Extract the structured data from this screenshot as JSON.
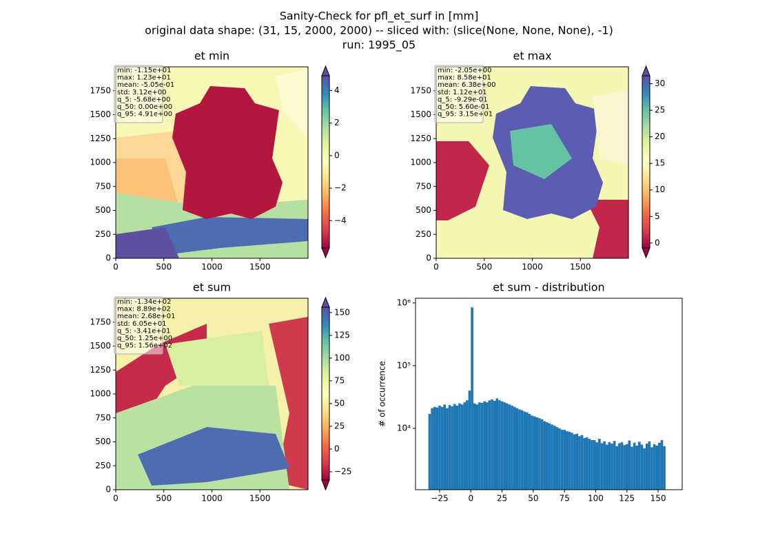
{
  "suptitle": [
    "Sanity-Check for pfl_et_surf in [mm]",
    "original data shape: (31, 15, 2000, 2000) -- sliced with: (slice(None, None, None), -1)",
    "run: 1995_05"
  ],
  "chart_data": [
    {
      "type": "heatmap",
      "title": "et min",
      "xlim": [
        0,
        2000
      ],
      "ylim": [
        0,
        2000
      ],
      "xticks": [
        0,
        500,
        1000,
        1500
      ],
      "yticks": [
        0,
        250,
        500,
        750,
        1000,
        1250,
        1500,
        1750
      ],
      "colormap": "Spectral",
      "colorbar_lim": [
        -5.68,
        4.91
      ],
      "colorbar_ticks": [
        {
          "value": -4,
          "label": "−4"
        },
        {
          "value": -2,
          "label": "−2"
        },
        0,
        2,
        4
      ],
      "stats": [
        "min: -1.15e+01",
        "max: 1.23e+01",
        "mean: -5.05e-01",
        "std: 3.12e+00",
        "q_5: -5.68e+00",
        "q_50: 0.00e+00",
        "q_95: 4.91e+00"
      ]
    },
    {
      "type": "heatmap",
      "title": "et max",
      "xlim": [
        0,
        2000
      ],
      "ylim": [
        0,
        2000
      ],
      "xticks": [
        0,
        500,
        1000,
        1500
      ],
      "yticks": [
        0,
        250,
        500,
        750,
        1000,
        1250,
        1500,
        1750
      ],
      "colormap": "Spectral",
      "colorbar_lim": [
        -0.929,
        31.5
      ],
      "colorbar_ticks": [
        0,
        5,
        10,
        15,
        20,
        25,
        30
      ],
      "stats": [
        "min: -2.05e+00",
        "max: 8.58e+01",
        "mean: 6.38e+00",
        "std: 1.12e+01",
        "q_5: -9.29e-01",
        "q_50: 5.60e-01",
        "q_95: 3.15e+01"
      ]
    },
    {
      "type": "heatmap",
      "title": "et sum",
      "xlim": [
        0,
        2000
      ],
      "ylim": [
        0,
        2000
      ],
      "xticks": [
        0,
        500,
        1000,
        1500
      ],
      "yticks": [
        0,
        250,
        500,
        750,
        1000,
        1250,
        1500,
        1750
      ],
      "colormap": "Spectral",
      "colorbar_lim": [
        -34.1,
        156
      ],
      "colorbar_ticks": [
        {
          "value": -25,
          "label": "−25"
        },
        0,
        25,
        50,
        75,
        100,
        125,
        150
      ],
      "stats": [
        "min: -1.34e+02",
        "max: 8.89e+02",
        "mean: 2.68e+01",
        "std: 6.05e+01",
        "q_5: -3.41e+01",
        "q_50: 1.25e+00",
        "q_95: 1.56e+02"
      ]
    },
    {
      "type": "histogram",
      "title": "et sum - distribution",
      "ylabel": "# of occurrence",
      "log_y": true,
      "color": "#1f77b4",
      "xlim": [
        -44.3,
        169.3
      ],
      "ylim": [
        1050,
        1190000
      ],
      "xticks": [
        {
          "value": -25,
          "label": "−25"
        },
        0,
        25,
        50,
        75,
        100,
        125,
        150
      ],
      "yticks": [
        {
          "value": 10000,
          "label": "10⁴"
        },
        {
          "value": 100000,
          "label": "10⁵"
        },
        {
          "value": 1000000,
          "label": "10⁶"
        }
      ],
      "bins": [
        -34,
        -32,
        -30,
        -28,
        -26,
        -24,
        -22,
        -20,
        -18,
        -16,
        -14,
        -12,
        -10,
        -8,
        -6,
        -4,
        -2,
        0,
        2,
        4,
        6,
        8,
        10,
        12,
        14,
        16,
        18,
        20,
        22,
        24,
        26,
        28,
        30,
        32,
        34,
        36,
        38,
        40,
        42,
        44,
        46,
        48,
        50,
        52,
        54,
        56,
        58,
        60,
        62,
        64,
        66,
        68,
        70,
        72,
        74,
        76,
        78,
        80,
        82,
        84,
        86,
        88,
        90,
        92,
        94,
        96,
        98,
        100,
        102,
        104,
        106,
        108,
        110,
        112,
        114,
        116,
        118,
        120,
        122,
        124,
        126,
        128,
        130,
        132,
        134,
        136,
        138,
        140,
        142,
        144,
        146,
        148,
        150,
        152,
        154,
        156
      ],
      "values": [
        17000,
        21000,
        22000,
        21500,
        23000,
        22000,
        24000,
        21000,
        23500,
        22500,
        24500,
        23000,
        25000,
        24000,
        26000,
        28000,
        40000,
        850000,
        25000,
        24000,
        26000,
        25500,
        27000,
        26000,
        28000,
        29000,
        27500,
        30000,
        28000,
        27000,
        26000,
        25000,
        24000,
        23000,
        22000,
        21000,
        20000,
        19500,
        18500,
        18000,
        17000,
        16000,
        15500,
        15000,
        14500,
        14000,
        13000,
        12500,
        12000,
        11500,
        11000,
        10500,
        10000,
        9500,
        9500,
        9000,
        8800,
        8500,
        8000,
        8200,
        7500,
        7800,
        7000,
        7200,
        6800,
        6500,
        6500,
        6000,
        6800,
        5800,
        6200,
        5500,
        6000,
        5700,
        6300,
        5200,
        5800,
        6000,
        5400,
        5600,
        6400,
        5100,
        5900,
        5300,
        6100,
        5500,
        4800,
        5700,
        6200,
        5000,
        5600,
        5300,
        5900,
        6500,
        5200
      ]
    }
  ]
}
